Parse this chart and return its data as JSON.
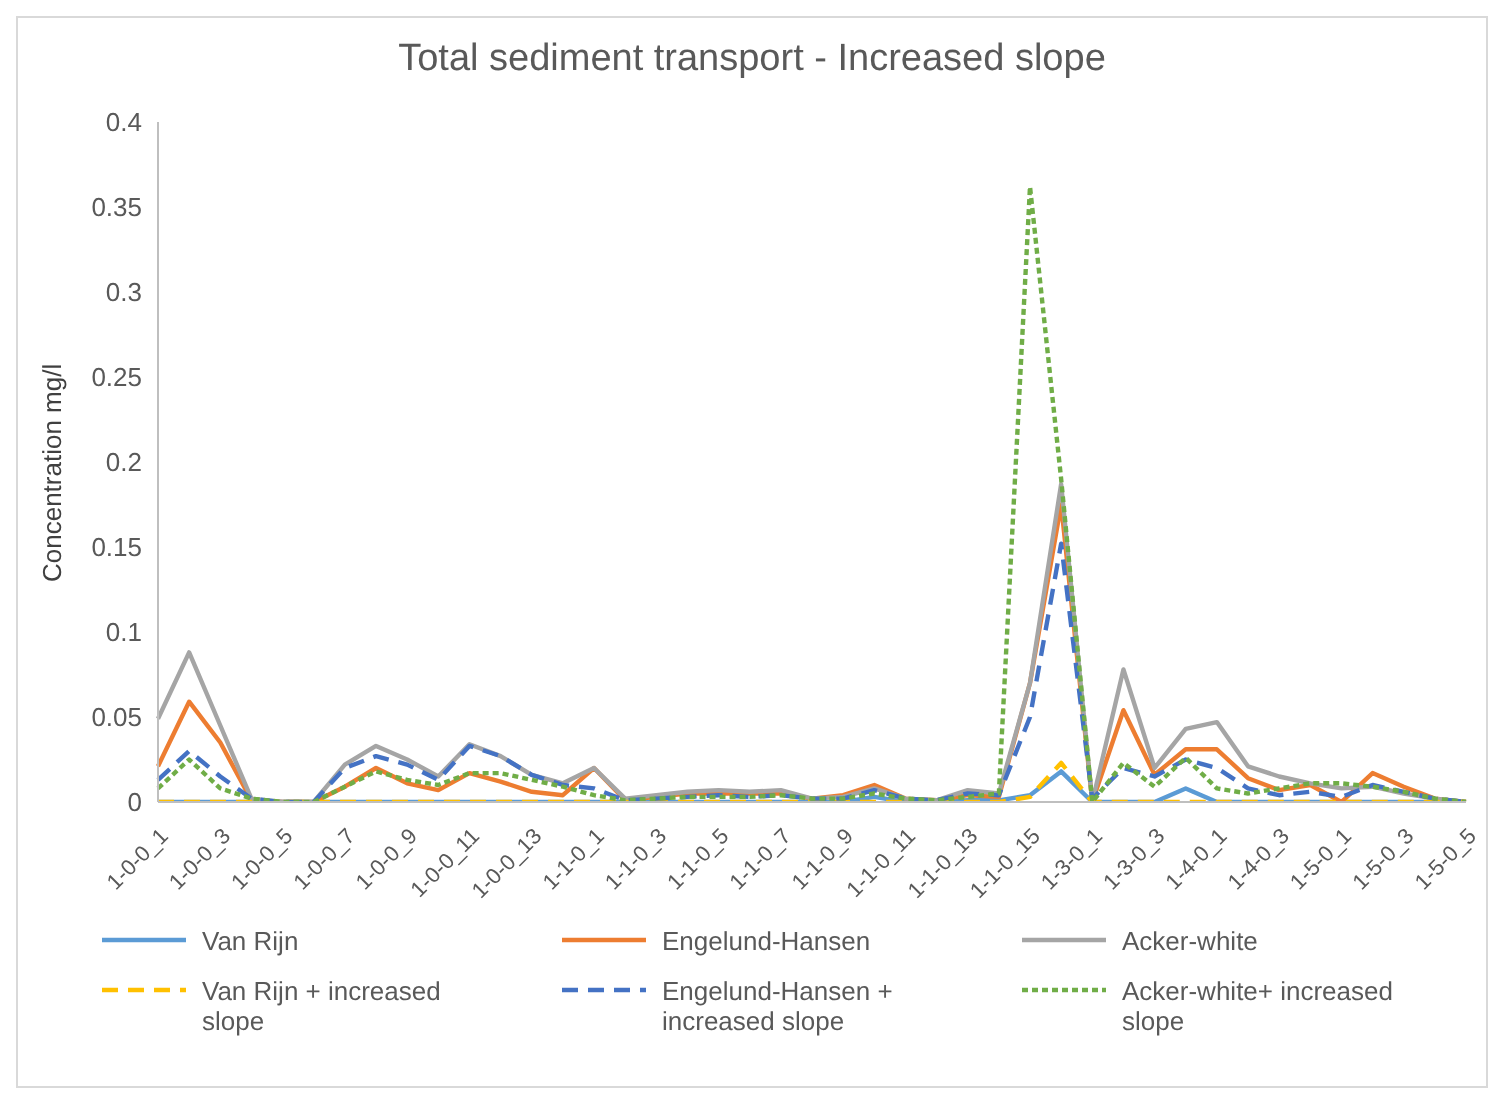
{
  "chart_data": {
    "type": "line",
    "title": "Total sediment transport - Increased slope",
    "ylabel": "Concentration mg/l",
    "categories": [
      "1-0-0_1",
      null,
      "1-0-0_3",
      null,
      "1-0-0_5",
      null,
      "1-0-0_7",
      null,
      "1-0-0_9",
      null,
      "1-0-0_11",
      null,
      "1-0-0_13",
      null,
      "1-1-0_1",
      null,
      "1-1-0_3",
      null,
      "1-1-0_5",
      null,
      "1-1-0_7",
      null,
      "1-1-0_9",
      null,
      "1-1-0_11",
      null,
      "1-1-0_13",
      null,
      "1-1-0_15",
      null,
      "1-3-0_1",
      null,
      "1-3-0_3",
      null,
      "1-4-0_1",
      null,
      "1-4-0_3",
      null,
      "1-5-0_1",
      null,
      "1-5-0_3",
      null,
      "1-5-0_5"
    ],
    "ylim": [
      0,
      0.4
    ],
    "yticks": [
      0,
      0.05,
      0.1,
      0.15,
      0.2,
      0.25,
      0.3,
      0.35,
      0.4
    ],
    "grid": false,
    "legend": "bottom",
    "marker": "none",
    "series": [
      {
        "name": "Van Rijn",
        "color": "#5b9bd5",
        "line_style": "solid",
        "values": [
          0,
          0,
          0,
          0,
          0,
          0,
          0,
          0,
          0,
          0,
          0,
          0,
          0,
          0,
          0,
          0,
          0,
          0,
          0,
          0,
          0,
          0,
          0,
          0.003,
          0,
          0,
          0.001,
          0.001,
          0.004,
          0.018,
          0,
          0,
          0,
          0.008,
          0,
          0,
          0,
          0,
          0,
          0,
          0,
          0,
          0
        ]
      },
      {
        "name": "Engelund-Hansen",
        "color": "#ed7d31",
        "line_style": "solid",
        "values": [
          0.021,
          0.059,
          0.035,
          0.001,
          0,
          0,
          0.009,
          0.02,
          0.011,
          0.007,
          0.017,
          0.012,
          0.006,
          0.004,
          0.02,
          0.001,
          0.003,
          0.005,
          0.005,
          0.005,
          0.005,
          0.002,
          0.004,
          0.01,
          0.002,
          0.001,
          0.004,
          0.003,
          0.07,
          0.175,
          0,
          0.054,
          0.016,
          0.031,
          0.031,
          0.014,
          0.007,
          0.01,
          0,
          0.017,
          0.009,
          0.002,
          0
        ]
      },
      {
        "name": "Acker-white",
        "color": "#a5a5a5",
        "line_style": "solid",
        "values": [
          0.049,
          0.088,
          0.045,
          0.002,
          0,
          0,
          0.022,
          0.033,
          0.025,
          0.015,
          0.034,
          0.027,
          0.016,
          0.011,
          0.02,
          0.002,
          0.004,
          0.006,
          0.007,
          0.006,
          0.007,
          0.002,
          0.003,
          0.008,
          0.002,
          0.001,
          0.007,
          0.005,
          0.07,
          0.187,
          0,
          0.078,
          0.02,
          0.043,
          0.047,
          0.021,
          0.015,
          0.011,
          0.008,
          0.009,
          0.005,
          0.002,
          0
        ]
      },
      {
        "name": "Van Rijn + increased slope",
        "color": "#ffc000",
        "line_style": "dashed",
        "values": [
          0,
          0,
          0,
          0,
          0,
          0,
          0,
          0,
          0,
          0,
          0,
          0,
          0,
          0,
          0,
          0,
          0,
          0,
          0,
          0,
          0,
          0,
          0,
          0,
          0,
          0,
          0,
          0,
          0.003,
          0.023,
          0,
          0,
          0,
          0,
          0,
          0,
          0,
          0,
          0,
          0,
          0,
          0,
          0
        ]
      },
      {
        "name": "Engelund-Hansen + increased slope",
        "color": "#4472c4",
        "line_style": "dashed",
        "values": [
          0.013,
          0.03,
          0.015,
          0.002,
          0,
          0,
          0.02,
          0.027,
          0.022,
          0.013,
          0.033,
          0.027,
          0.016,
          0.01,
          0.008,
          0.001,
          0.002,
          0.003,
          0.004,
          0.003,
          0.004,
          0.002,
          0.002,
          0.007,
          0.002,
          0.001,
          0.005,
          0.004,
          0.05,
          0.152,
          0.002,
          0.02,
          0.015,
          0.025,
          0.02,
          0.008,
          0.004,
          0.006,
          0.003,
          0.01,
          0.006,
          0.002,
          0
        ]
      },
      {
        "name": "Acker-white+ increased slope",
        "color": "#70ad47",
        "line_style": "dotted",
        "values": [
          0.008,
          0.025,
          0.008,
          0.002,
          0,
          0,
          0.009,
          0.018,
          0.013,
          0.01,
          0.017,
          0.017,
          0.013,
          0.009,
          0.004,
          0.001,
          0.002,
          0.003,
          0.003,
          0.003,
          0.004,
          0.002,
          0.002,
          0.005,
          0.002,
          0.001,
          0.003,
          0.005,
          0.362,
          0.19,
          0,
          0.023,
          0.009,
          0.026,
          0.008,
          0.005,
          0.008,
          0.011,
          0.011,
          0.009,
          0.006,
          0.002,
          0
        ]
      }
    ]
  }
}
